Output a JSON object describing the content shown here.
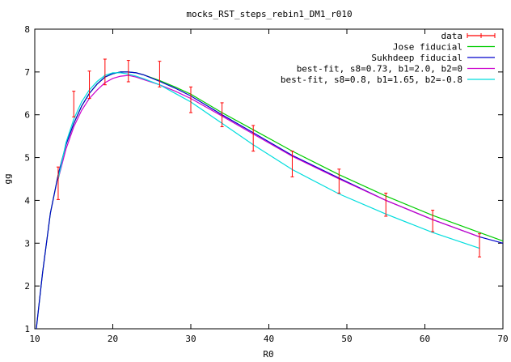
{
  "chart_data": {
    "type": "line",
    "title": "mocks_RST_steps_rebin1_DM1_r010",
    "xlabel": "R0",
    "ylabel": "gg",
    "xlim": [
      10,
      70
    ],
    "ylim": [
      1,
      8
    ],
    "xticks": [
      10,
      20,
      30,
      40,
      50,
      60,
      70
    ],
    "yticks": [
      1,
      2,
      3,
      4,
      5,
      6,
      7,
      8
    ],
    "grid": false,
    "legend_position": "top-right",
    "series": [
      {
        "name": "data",
        "style": "errorbars",
        "color": "#ff0000",
        "x": [
          13,
          15,
          17,
          19,
          22,
          26,
          30,
          34,
          38,
          43,
          49,
          55,
          61,
          67
        ],
        "y": [
          4.4,
          6.25,
          6.7,
          7.0,
          7.02,
          6.95,
          6.35,
          6.0,
          5.45,
          4.85,
          4.45,
          3.9,
          3.52,
          2.95
        ],
        "yerr": [
          0.38,
          0.3,
          0.32,
          0.3,
          0.25,
          0.3,
          0.3,
          0.28,
          0.3,
          0.3,
          0.28,
          0.27,
          0.25,
          0.27
        ]
      },
      {
        "name": "Jose fiducial",
        "style": "line",
        "color": "#00cc00",
        "x": [
          10.2,
          11,
          12,
          13,
          14,
          15,
          16,
          17,
          18,
          19,
          20,
          21,
          22,
          23,
          24,
          26,
          28,
          30,
          34,
          38,
          43,
          49,
          55,
          61,
          67,
          70
        ],
        "y": [
          1.0,
          2.3,
          3.7,
          4.6,
          5.3,
          5.8,
          6.2,
          6.5,
          6.72,
          6.88,
          6.96,
          7.0,
          7.0,
          6.98,
          6.93,
          6.8,
          6.65,
          6.48,
          6.05,
          5.65,
          5.15,
          4.6,
          4.1,
          3.65,
          3.25,
          3.05
        ]
      },
      {
        "name": "Sukhdeep fiducial",
        "style": "line",
        "color": "#0000cc",
        "x": [
          10.2,
          11,
          12,
          13,
          14,
          15,
          16,
          17,
          18,
          19,
          20,
          21,
          22,
          23,
          24,
          26,
          28,
          30,
          34,
          38,
          43,
          49,
          55,
          61,
          67,
          70
        ],
        "y": [
          1.0,
          2.3,
          3.7,
          4.6,
          5.3,
          5.8,
          6.2,
          6.5,
          6.72,
          6.88,
          6.96,
          7.0,
          7.0,
          6.98,
          6.93,
          6.78,
          6.62,
          6.44,
          6.0,
          5.58,
          5.05,
          4.52,
          4.0,
          3.55,
          3.15,
          3.0
        ]
      },
      {
        "name": "best-fit, s8=0.73, b1=2.0, b2=0",
        "style": "line",
        "color": "#cc00cc",
        "x": [
          13,
          14,
          15,
          16,
          17,
          18,
          19,
          20,
          21,
          22,
          23,
          24,
          26,
          28,
          30,
          34,
          38,
          43,
          49,
          55,
          61,
          67
        ],
        "y": [
          4.5,
          5.2,
          5.72,
          6.1,
          6.38,
          6.58,
          6.75,
          6.85,
          6.9,
          6.92,
          6.88,
          6.82,
          6.7,
          6.55,
          6.38,
          5.97,
          5.55,
          5.03,
          4.5,
          4.0,
          3.55,
          3.15
        ]
      },
      {
        "name": "best-fit, s8=0.8, b1=1.65, b2=-0.8",
        "style": "line",
        "color": "#00dddd",
        "x": [
          13,
          14,
          15,
          16,
          17,
          18,
          19,
          20,
          21,
          22,
          23,
          24,
          26,
          28,
          30,
          34,
          38,
          43,
          49,
          55,
          61,
          67
        ],
        "y": [
          4.5,
          5.35,
          5.9,
          6.3,
          6.58,
          6.78,
          6.92,
          6.98,
          6.98,
          6.95,
          6.9,
          6.84,
          6.7,
          6.5,
          6.3,
          5.8,
          5.3,
          4.72,
          4.15,
          3.68,
          3.25,
          2.88
        ]
      }
    ]
  }
}
